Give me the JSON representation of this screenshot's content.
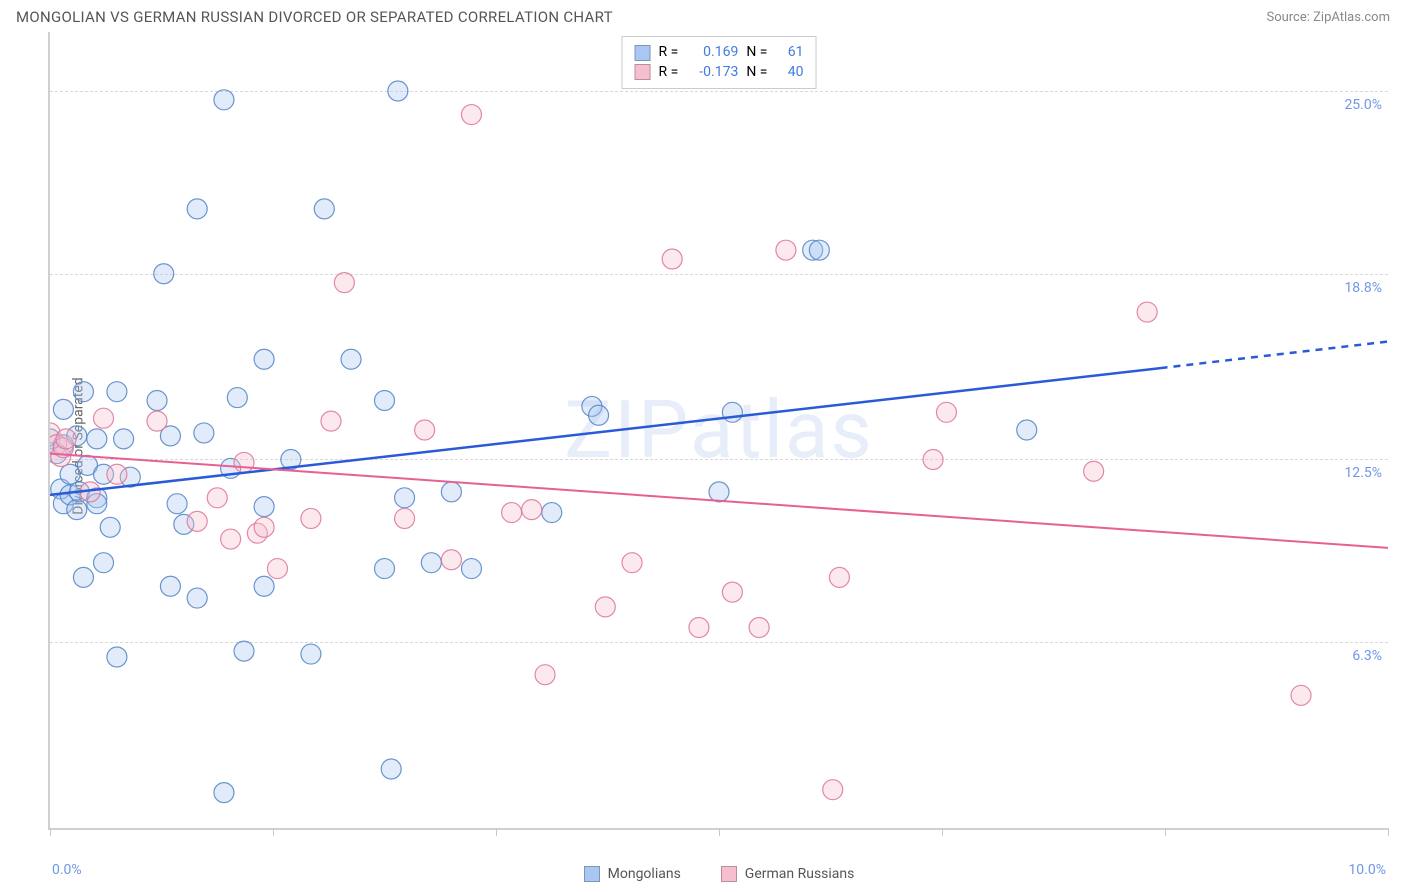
{
  "header": {
    "title": "MONGOLIAN VS GERMAN RUSSIAN DIVORCED OR SEPARATED CORRELATION CHART",
    "source_prefix": "Source: ",
    "source_name": "ZipAtlas.com"
  },
  "y_axis_label": "Divorced or Separated",
  "watermark": "ZIPatlas",
  "chart": {
    "type": "scatter",
    "xlim": [
      0,
      10
    ],
    "ylim": [
      0,
      27
    ],
    "grid_color": "#d8d8d8",
    "border_color": "#d0d0d0",
    "bg": "#ffffff",
    "ytick_positions": [
      6.3,
      12.5,
      18.8,
      25.0
    ],
    "ytick_labels": [
      "6.3%",
      "12.5%",
      "18.8%",
      "25.0%"
    ],
    "xtick_positions": [
      0,
      1.67,
      3.33,
      5.0,
      6.67,
      8.33,
      10.0
    ],
    "x_left_label": "0.0%",
    "x_right_label": "10.0%",
    "marker_radius": 10,
    "marker_stroke_opacity": 0.9,
    "marker_fill_opacity": 0.35,
    "line_width_blue": 2.5,
    "line_width_pink": 2.0
  },
  "legend_top": {
    "rows": [
      {
        "swatch": "#a9c7f2",
        "r_label": "R =",
        "r": "0.169",
        "n_label": "N =",
        "n": "61"
      },
      {
        "swatch": "#f6bfcf",
        "r_label": "R =",
        "r": "-0.173",
        "n_label": "N =",
        "n": "40"
      }
    ]
  },
  "legend_bottom": {
    "items": [
      {
        "swatch": "#a9c7f2",
        "label": "Mongolians"
      },
      {
        "swatch": "#f6bfcf",
        "label": "German Russians"
      }
    ]
  },
  "series": {
    "blue": {
      "fill": "#a9c7f2",
      "stroke": "#5a89c9",
      "trend_color": "#2a5bd7",
      "trend": {
        "x1": 0,
        "y1": 11.3,
        "x2_solid": 8.3,
        "y2_solid": 15.6,
        "x2_dash": 10,
        "y2_dash": 16.5
      },
      "points": [
        [
          0.0,
          13.2
        ],
        [
          0.05,
          12.7
        ],
        [
          0.08,
          11.5
        ],
        [
          0.1,
          13.0
        ],
        [
          0.1,
          11.0
        ],
        [
          0.1,
          14.2
        ],
        [
          0.15,
          11.3
        ],
        [
          0.15,
          12.0
        ],
        [
          0.2,
          10.8
        ],
        [
          0.2,
          13.3
        ],
        [
          0.22,
          11.4
        ],
        [
          0.25,
          8.5
        ],
        [
          0.25,
          14.8
        ],
        [
          0.28,
          12.3
        ],
        [
          0.35,
          11.2
        ],
        [
          0.35,
          13.2
        ],
        [
          0.35,
          11.0
        ],
        [
          0.4,
          12.0
        ],
        [
          0.4,
          9.0
        ],
        [
          0.45,
          10.2
        ],
        [
          0.5,
          5.8
        ],
        [
          0.5,
          14.8
        ],
        [
          0.55,
          13.2
        ],
        [
          0.6,
          11.9
        ],
        [
          0.8,
          14.5
        ],
        [
          0.85,
          18.8
        ],
        [
          0.9,
          13.3
        ],
        [
          0.9,
          8.2
        ],
        [
          0.95,
          11.0
        ],
        [
          1.0,
          10.3
        ],
        [
          1.1,
          7.8
        ],
        [
          1.1,
          21.0
        ],
        [
          1.15,
          13.4
        ],
        [
          1.3,
          1.2
        ],
        [
          1.3,
          24.7
        ],
        [
          1.35,
          12.2
        ],
        [
          1.4,
          14.6
        ],
        [
          1.45,
          6.0
        ],
        [
          1.6,
          8.2
        ],
        [
          1.6,
          10.9
        ],
        [
          1.6,
          15.9
        ],
        [
          1.8,
          12.5
        ],
        [
          1.95,
          5.9
        ],
        [
          2.05,
          21.0
        ],
        [
          2.25,
          15.9
        ],
        [
          2.5,
          8.8
        ],
        [
          2.5,
          14.5
        ],
        [
          2.55,
          2.0
        ],
        [
          2.6,
          25.0
        ],
        [
          2.65,
          11.2
        ],
        [
          2.85,
          9.0
        ],
        [
          3.0,
          11.4
        ],
        [
          3.15,
          8.8
        ],
        [
          3.75,
          10.7
        ],
        [
          4.05,
          14.3
        ],
        [
          4.1,
          14.0
        ],
        [
          5.0,
          11.4
        ],
        [
          5.1,
          14.1
        ],
        [
          5.7,
          19.6
        ],
        [
          7.3,
          13.5
        ],
        [
          5.75,
          19.6
        ]
      ]
    },
    "pink": {
      "fill": "#f6bfcf",
      "stroke": "#e07aa0",
      "trend_color": "#e85f92",
      "trend": {
        "x1": 0,
        "y1": 12.7,
        "x2": 10,
        "y2": 9.5
      },
      "points": [
        [
          0.0,
          13.4
        ],
        [
          0.05,
          13.0
        ],
        [
          0.08,
          12.6
        ],
        [
          0.1,
          12.9
        ],
        [
          0.12,
          13.2
        ],
        [
          0.3,
          11.4
        ],
        [
          0.4,
          13.9
        ],
        [
          0.5,
          12.0
        ],
        [
          0.8,
          13.8
        ],
        [
          1.1,
          10.4
        ],
        [
          1.25,
          11.2
        ],
        [
          1.35,
          9.8
        ],
        [
          1.45,
          12.4
        ],
        [
          1.55,
          10.0
        ],
        [
          1.6,
          10.2
        ],
        [
          1.7,
          8.8
        ],
        [
          1.95,
          10.5
        ],
        [
          2.1,
          13.8
        ],
        [
          2.2,
          18.5
        ],
        [
          2.65,
          10.5
        ],
        [
          2.8,
          13.5
        ],
        [
          3.0,
          9.1
        ],
        [
          3.15,
          24.2
        ],
        [
          3.45,
          10.7
        ],
        [
          3.6,
          10.8
        ],
        [
          3.7,
          5.2
        ],
        [
          4.15,
          7.5
        ],
        [
          4.35,
          9.0
        ],
        [
          4.65,
          19.3
        ],
        [
          4.85,
          6.8
        ],
        [
          5.1,
          8.0
        ],
        [
          5.3,
          6.8
        ],
        [
          5.5,
          19.6
        ],
        [
          5.85,
          1.3
        ],
        [
          5.9,
          8.5
        ],
        [
          6.6,
          12.5
        ],
        [
          6.7,
          14.1
        ],
        [
          7.8,
          12.1
        ],
        [
          8.2,
          17.5
        ],
        [
          9.35,
          4.5
        ]
      ]
    }
  }
}
